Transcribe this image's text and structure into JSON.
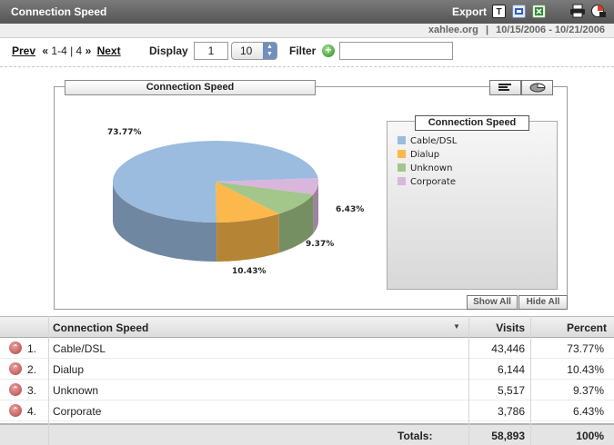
{
  "header": {
    "title": "Connection Speed",
    "export_label": "Export"
  },
  "subheader": {
    "site": "xahlee.org",
    "separator": "|",
    "date_range": "10/15/2006 - 10/21/2006"
  },
  "nav": {
    "prev_label": "Prev",
    "first_icon": "«",
    "range_text": "1-4 | 4",
    "last_icon": "»",
    "next_label": "Next",
    "display_label": "Display",
    "display_value": "1",
    "per_page_value": "10",
    "filter_label": "Filter",
    "filter_value": ""
  },
  "chart": {
    "title": "Connection Speed",
    "legend_title": "Connection Speed",
    "show_all_label": "Show All",
    "hide_all_label": "Hide All"
  },
  "chart_data": {
    "type": "pie",
    "title": "Connection Speed",
    "categories": [
      "Cable/DSL",
      "Dialup",
      "Unknown",
      "Corporate"
    ],
    "values": [
      73.77,
      10.43,
      9.37,
      6.43
    ],
    "labels": [
      "73.77%",
      "10.43%",
      "9.37%",
      "6.43%"
    ],
    "colors": [
      "#9bbcdf",
      "#fcb84a",
      "#a3c68a",
      "#d9b6dc"
    ],
    "legend_position": "right"
  },
  "table": {
    "columns": [
      "Connection Speed",
      "Visits",
      "Percent"
    ],
    "rows": [
      {
        "rank": "1.",
        "name": "Cable/DSL",
        "visits": "43,446",
        "percent": "73.77%"
      },
      {
        "rank": "2.",
        "name": "Dialup",
        "visits": "6,144",
        "percent": "10.43%"
      },
      {
        "rank": "3.",
        "name": "Unknown",
        "visits": "5,517",
        "percent": "9.37%"
      },
      {
        "rank": "4.",
        "name": "Corporate",
        "visits": "3,786",
        "percent": "6.43%"
      }
    ],
    "totals_label": "Totals:",
    "totals_visits": "58,893",
    "totals_percent": "100%"
  }
}
